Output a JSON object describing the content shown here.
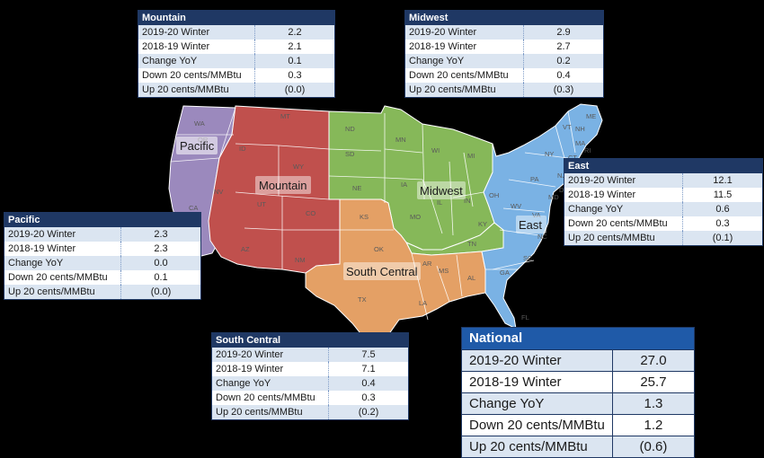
{
  "regions": {
    "mountain": {
      "label": "Mountain",
      "color": "#c0504d"
    },
    "midwest": {
      "label": "Midwest",
      "color": "#86b859"
    },
    "pacific": {
      "label": "Pacific",
      "color": "#9b89bd"
    },
    "south_central": {
      "label": "South Central",
      "color": "#e4a065"
    },
    "east": {
      "label": "East",
      "color": "#7ab2e4"
    }
  },
  "states": [
    "WA",
    "OR",
    "CA",
    "ID",
    "MT",
    "WY",
    "NV",
    "UT",
    "AZ",
    "CO",
    "NM",
    "ND",
    "SD",
    "NE",
    "KS",
    "OK",
    "TX",
    "MN",
    "IA",
    "MO",
    "WI",
    "IL",
    "MI",
    "IN",
    "OH",
    "KY",
    "TN",
    "AR",
    "LA",
    "MS",
    "AL",
    "GA",
    "FL",
    "SC",
    "NC",
    "VA",
    "WV",
    "PA",
    "NY",
    "MD",
    "DE",
    "NJ",
    "CT",
    "RI",
    "MA",
    "VT",
    "NH",
    "ME"
  ],
  "panels": {
    "mountain": {
      "title": "Mountain",
      "rows": [
        {
          "label": "2019-20 Winter",
          "value": "2.2"
        },
        {
          "label": "2018-19 Winter",
          "value": "2.1"
        },
        {
          "label": "Change YoY",
          "value": "0.1"
        },
        {
          "label": "Down 20 cents/MMBtu",
          "value": "0.3"
        },
        {
          "label": "Up 20 cents/MMBtu",
          "value": "(0.0)"
        }
      ]
    },
    "midwest": {
      "title": "Midwest",
      "rows": [
        {
          "label": "2019-20 Winter",
          "value": "2.9"
        },
        {
          "label": "2018-19 Winter",
          "value": "2.7"
        },
        {
          "label": "Change YoY",
          "value": "0.2"
        },
        {
          "label": "Down 20 cents/MMBtu",
          "value": "0.4"
        },
        {
          "label": "Up 20 cents/MMBtu",
          "value": "(0.3)"
        }
      ]
    },
    "east": {
      "title": "East",
      "rows": [
        {
          "label": "2019-20 Winter",
          "value": "12.1"
        },
        {
          "label": "2018-19 Winter",
          "value": "11.5"
        },
        {
          "label": "Change YoY",
          "value": "0.6"
        },
        {
          "label": "Down 20 cents/MMBtu",
          "value": "0.3"
        },
        {
          "label": "Up 20 cents/MMBtu",
          "value": "(0.1)"
        }
      ]
    },
    "pacific": {
      "title": "Pacific",
      "rows": [
        {
          "label": "2019-20 Winter",
          "value": "2.3"
        },
        {
          "label": "2018-19 Winter",
          "value": "2.3"
        },
        {
          "label": "Change YoY",
          "value": "0.0"
        },
        {
          "label": "Down 20 cents/MMBtu",
          "value": "0.1"
        },
        {
          "label": "Up 20 cents/MMBtu",
          "value": "(0.0)"
        }
      ]
    },
    "south_central": {
      "title": "South Central",
      "rows": [
        {
          "label": "2019-20 Winter",
          "value": "7.5"
        },
        {
          "label": "2018-19 Winter",
          "value": "7.1"
        },
        {
          "label": "Change YoY",
          "value": "0.4"
        },
        {
          "label": "Down 20 cents/MMBtu",
          "value": "0.3"
        },
        {
          "label": "Up 20 cents/MMBtu",
          "value": "(0.2)"
        }
      ]
    },
    "national": {
      "title": "National",
      "rows": [
        {
          "label": "2019-20 Winter",
          "value": "27.0"
        },
        {
          "label": "2018-19 Winter",
          "value": "25.7"
        },
        {
          "label": "Change YoY",
          "value": "1.3"
        },
        {
          "label": "Down 20 cents/MMBtu",
          "value": "1.2"
        },
        {
          "label": "Up 20 cents/MMBtu",
          "value": "(0.6)"
        }
      ]
    }
  }
}
